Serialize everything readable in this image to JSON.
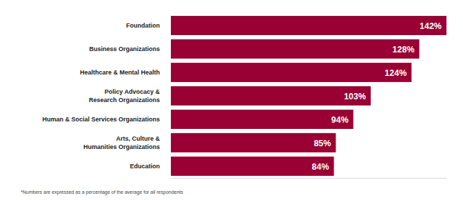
{
  "chart_data": {
    "type": "bar",
    "orientation": "horizontal",
    "categories": [
      "Foundation",
      "Business Organizations",
      "Healthcare & Mental Health",
      "Policy Advocacy &\nResearch Organizations",
      "Human & Social Services Organizations",
      "Arts, Culture &\nHumanities Organizations",
      "Education"
    ],
    "values": [
      142,
      128,
      124,
      103,
      94,
      85,
      84
    ],
    "value_labels": [
      "142%",
      "128%",
      "124%",
      "103%",
      "94%",
      "85%",
      "84%"
    ],
    "color": "#990033",
    "xlim": [
      0,
      142
    ],
    "xticks": [],
    "grid": false,
    "data_labels": true,
    "tick_labels": "y",
    "annotations": [
      "*Numbers are expressed as a percentage of the average for all respondents"
    ]
  }
}
